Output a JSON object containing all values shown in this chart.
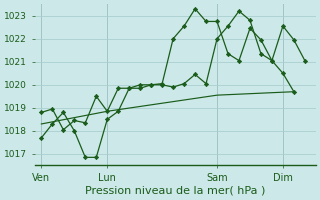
{
  "xlabel": "Pression niveau de la mer( hPa )",
  "bg_color": "#cce8e8",
  "grid_color": "#aacece",
  "line_color": "#1a5c1a",
  "ylim": [
    1016.5,
    1023.5
  ],
  "yticks": [
    1017,
    1018,
    1019,
    1020,
    1021,
    1022,
    1023
  ],
  "xtick_labels": [
    "Ven",
    "Lun",
    "Sam",
    "Dim"
  ],
  "xtick_positions": [
    0,
    3,
    8,
    11
  ],
  "vline_positions": [
    0,
    3,
    8,
    11
  ],
  "series1_x": [
    0,
    0.5,
    1,
    1.5,
    2,
    2.5,
    3,
    3.5,
    4,
    4.5,
    5,
    5.5,
    6,
    6.5,
    7,
    7.5,
    8,
    8.5,
    9,
    9.5,
    10,
    10.5,
    11,
    11.5,
    12
  ],
  "series1_y": [
    1017.7,
    1018.3,
    1018.8,
    1018.0,
    1016.85,
    1016.85,
    1018.5,
    1018.85,
    1019.85,
    1019.85,
    1020.0,
    1020.0,
    1019.9,
    1020.05,
    1020.45,
    1020.05,
    1022.0,
    1022.55,
    1023.2,
    1022.8,
    1021.35,
    1021.05,
    1022.55,
    1021.95,
    1021.05
  ],
  "series2_x": [
    0,
    0.5,
    1,
    1.5,
    2,
    2.5,
    3,
    3.5,
    4,
    4.5,
    5,
    5.5,
    6,
    6.5,
    7,
    7.5,
    8,
    8.5,
    9,
    9.5,
    10,
    10.5,
    11,
    11.5
  ],
  "series2_y": [
    1018.8,
    1018.95,
    1018.05,
    1018.45,
    1018.35,
    1019.5,
    1018.85,
    1019.85,
    1019.85,
    1020.0,
    1020.0,
    1020.05,
    1022.0,
    1022.55,
    1023.3,
    1022.75,
    1022.75,
    1021.35,
    1021.05,
    1022.45,
    1021.95,
    1021.05,
    1020.5,
    1019.7
  ],
  "series3_x": [
    0,
    3,
    8,
    11.5
  ],
  "series3_y": [
    1018.3,
    1018.85,
    1019.55,
    1019.7
  ],
  "xlim": [
    -0.3,
    12.5
  ]
}
